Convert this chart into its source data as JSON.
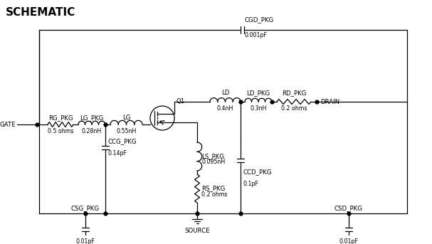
{
  "title": "SCHEMATIC",
  "background": "#ffffff",
  "line_color": "#000000",
  "title_fontsize": 11,
  "label_fontsize": 6.2,
  "component_labels": {
    "RG_PKG": "RG_PKG",
    "LG_PKG": "LG_PKG",
    "LG": "LG",
    "Q1": "Q1",
    "LD": "LD",
    "LD_PKG": "LD_PKG",
    "RD_PKG": "RD_PKG",
    "CCG_PKG": "CCG_PKG",
    "LS_PKG": "LS_PKG",
    "RS_PKG": "RS_PKG",
    "CGD_PKG": "CGD_PKG",
    "CCD_PKG": "CCD_PKG",
    "CSG_PKG": "CSG_PKG",
    "CSD_PKG": "CSD_PKG",
    "GATE": "GATE",
    "DRAIN": "DRAIN",
    "SOURCE": "SOURCE"
  },
  "component_values": {
    "RG_PKG": "0.5 ohms",
    "LG_PKG": "0.28nH",
    "LG": "0.55nH",
    "LD": "0.4nH",
    "LD_PKG": "0.3nH",
    "RD_PKG": "0.2 ohms",
    "CCG_PKG": "0.14pF",
    "LS_PKG": "0.095nH",
    "RS_PKG": "0.2 ohms",
    "CGD_PKG": "0.001pF",
    "CCD_PKG": "0.1pF",
    "CSG_PKG": "0.01pF",
    "CSD_PKG": "0.01pF"
  }
}
